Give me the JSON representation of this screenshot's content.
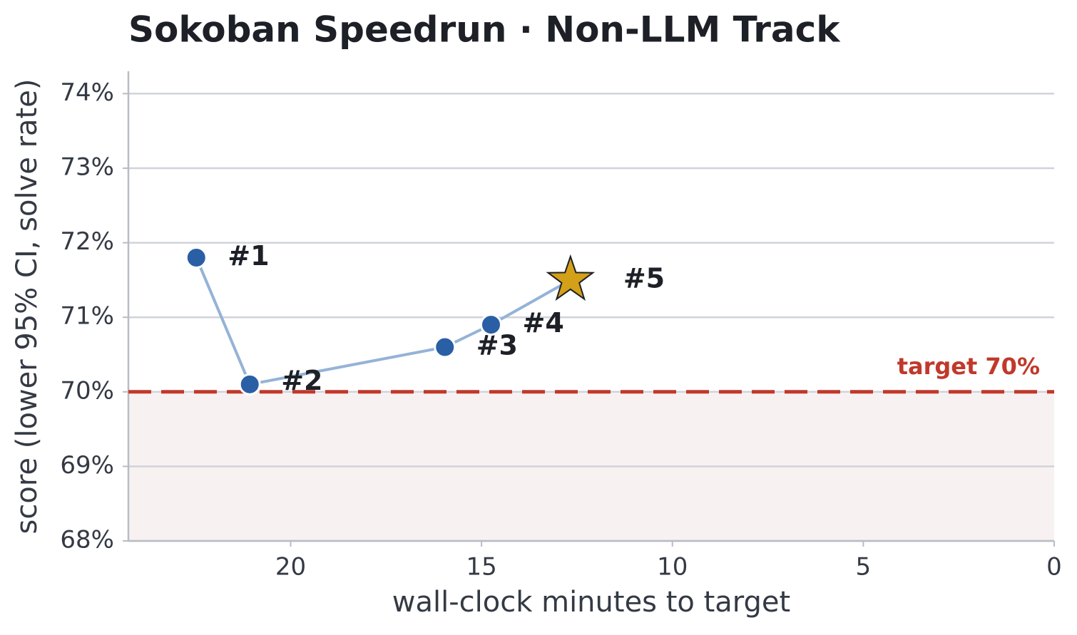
{
  "chart_data": {
    "type": "line",
    "title": "Sokoban Speedrun  ·  Non-LLM Track",
    "x_label": "wall-clock minutes to target",
    "y_label": "score  (lower 95% CI, solve rate)",
    "x": [
      22.47,
      21.07,
      15.96,
      14.75,
      12.67
    ],
    "values": [
      71.8,
      70.1,
      70.6,
      70.9,
      71.5
    ],
    "point_labels": [
      "#1",
      "#2",
      "#3",
      "#4",
      "#5"
    ],
    "markers": [
      "circle",
      "circle",
      "circle",
      "circle",
      "star"
    ],
    "line_color": "#94b3d6",
    "marker_color": "#2a5fa5",
    "highlight_color": "#d4a017",
    "target": 70,
    "target_label": "target 70%",
    "target_color": "#c0392b",
    "shade_color": "#f8f1f2",
    "xlim": [
      24.25,
      0
    ],
    "xticks": [
      20,
      15,
      10,
      5,
      0
    ],
    "ylim": [
      68,
      74.3
    ],
    "yticks": [
      {
        "value": 68,
        "label": "68%"
      },
      {
        "value": 69,
        "label": "69%"
      },
      {
        "value": 70,
        "label": "70%"
      },
      {
        "value": 71,
        "label": "71%"
      },
      {
        "value": 72,
        "label": "72%"
      },
      {
        "value": 73,
        "label": "73%"
      },
      {
        "value": 74,
        "label": "74%"
      }
    ],
    "grid": true
  }
}
